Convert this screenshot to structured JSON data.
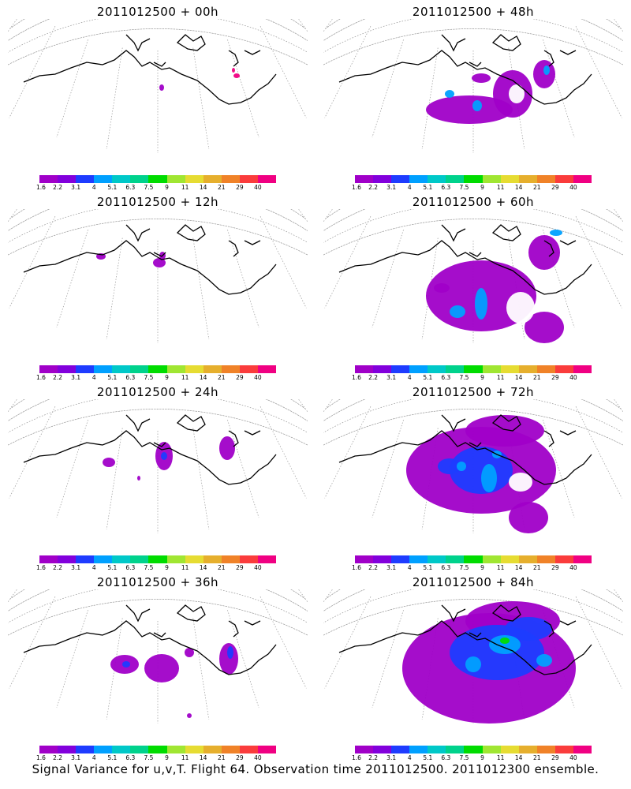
{
  "panels": [
    {
      "title": "2011012500 + 00h",
      "blobs": "p0"
    },
    {
      "title": "2011012500 + 48h",
      "blobs": "p48"
    },
    {
      "title": "2011012500 + 12h",
      "blobs": "p12"
    },
    {
      "title": "2011012500 + 60h",
      "blobs": "p60"
    },
    {
      "title": "2011012500 + 24h",
      "blobs": "p24"
    },
    {
      "title": "2011012500 + 72h",
      "blobs": "p72"
    },
    {
      "title": "2011012500 + 36h",
      "blobs": "p36"
    },
    {
      "title": "2011012500 + 84h",
      "blobs": "p84"
    }
  ],
  "colorbar": {
    "labels": [
      "1.6",
      "2.2",
      "3.1",
      "4",
      "5.1",
      "6.3",
      "7.5",
      "9",
      "11",
      "14",
      "21",
      "29",
      "40"
    ],
    "colors": [
      "#a000c8",
      "#8200dc",
      "#1e3cff",
      "#00a0ff",
      "#00c8c8",
      "#00d28c",
      "#00dc00",
      "#a0e632",
      "#e6dc32",
      "#e6af2d",
      "#f08228",
      "#fa3c3c",
      "#f00082"
    ]
  },
  "footer": "Signal Variance for u,v,T. Flight 64. Observation time 2011012500. 2011012300 ensemble."
}
